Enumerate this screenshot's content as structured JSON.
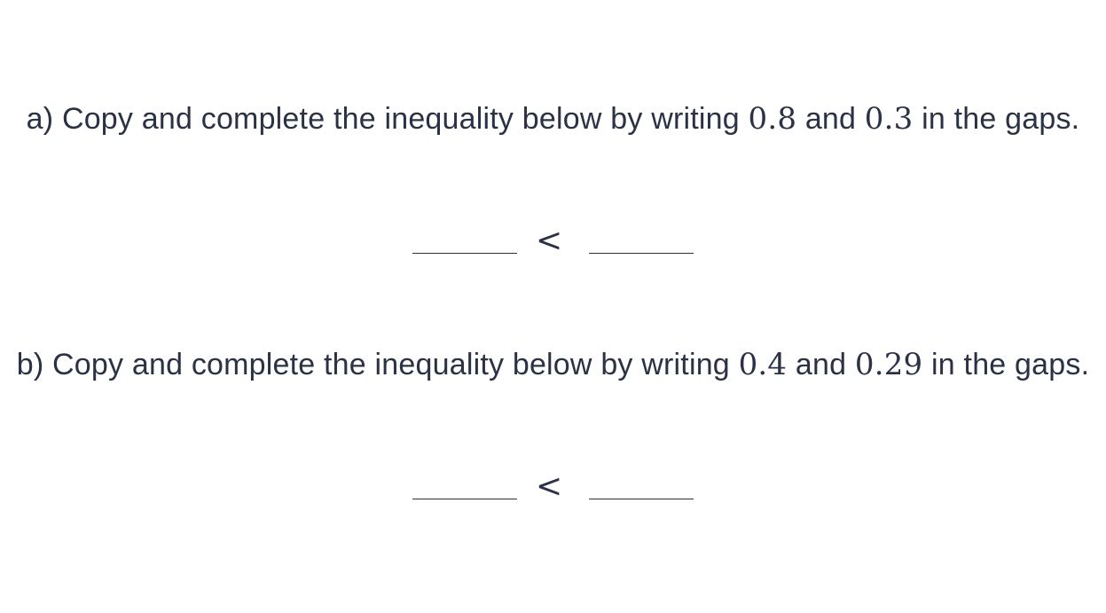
{
  "questions": [
    {
      "prefix": "a) Copy and complete the inequality below by writing ",
      "value_1": "0.8",
      "connector": " and ",
      "value_2": "0.3",
      "suffix": " in the gaps.",
      "symbol": "<"
    },
    {
      "prefix": "b) Copy and complete the inequality below by writing ",
      "value_1": "0.4",
      "connector": " and ",
      "value_2": "0.29",
      "suffix": " in the gaps.",
      "symbol": "<"
    }
  ]
}
